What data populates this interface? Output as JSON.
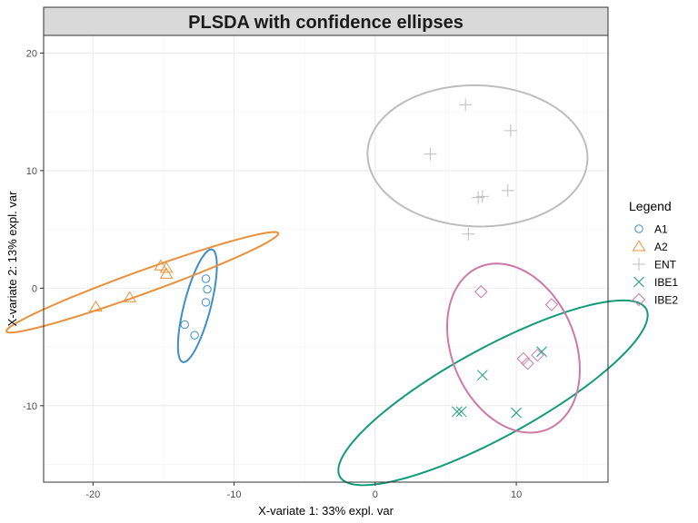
{
  "chart_data": {
    "type": "scatter",
    "title": "PLSDA with confidence ellipses",
    "xlabel": "X-variate 1: 33% expl. var",
    "ylabel": "X-variate 2: 13% expl. var",
    "xlim": [
      -23.5,
      16.5
    ],
    "ylim": [
      -16.5,
      21.5
    ],
    "xticks": [
      -20,
      -10,
      0,
      10
    ],
    "yticks": [
      -10,
      0,
      10,
      20
    ],
    "grid": true,
    "legend_title": "Legend",
    "legend_position": "right",
    "series": [
      {
        "name": "A1",
        "color": "#3d8fc4",
        "marker": "circle",
        "points": [
          [
            -12,
            0.8
          ],
          [
            -11.9,
            -0.1
          ],
          [
            -12,
            -1.2
          ],
          [
            -13.5,
            -3.1
          ],
          [
            -12.8,
            -4
          ]
        ],
        "ellipse": {
          "cx": -12.6,
          "cy": -1.5,
          "rx": 4.9,
          "ry": 0.95,
          "angle": 78
        }
      },
      {
        "name": "A2",
        "color": "#e8913a",
        "marker": "triangle",
        "points": [
          [
            -19.8,
            -1.6
          ],
          [
            -17.4,
            -0.8
          ],
          [
            -15.2,
            1.9
          ],
          [
            -14.8,
            1.7
          ],
          [
            -14.8,
            1.2
          ]
        ],
        "ellipse": {
          "cx": -16.5,
          "cy": 0.5,
          "rx": 10.5,
          "ry": 0.95,
          "angle": 23.5
        }
      },
      {
        "name": "ENT",
        "color": "#bdbdbd",
        "marker": "plus",
        "points": [
          [
            6.4,
            15.6
          ],
          [
            9.6,
            13.4
          ],
          [
            3.9,
            11.4
          ],
          [
            9.4,
            8.3
          ],
          [
            7.3,
            7.7
          ],
          [
            7.6,
            7.8
          ],
          [
            6.6,
            4.6
          ]
        ],
        "ellipse": {
          "cx": 7.25,
          "cy": 11.25,
          "rx": 6,
          "ry": 7.8,
          "angle": 87
        }
      },
      {
        "name": "IBE1",
        "color": "#119b78",
        "marker": "x",
        "points": [
          [
            5.8,
            -10.5
          ],
          [
            6.1,
            -10.5
          ],
          [
            7.6,
            -7.4
          ],
          [
            10,
            -10.6
          ],
          [
            11.8,
            -5.4
          ]
        ],
        "ellipse": {
          "cx": 8.35,
          "cy": -8.9,
          "rx": 13,
          "ry": 3.6,
          "angle": 34
        }
      },
      {
        "name": "IBE2",
        "color": "#cc79a7",
        "marker": "diamond",
        "points": [
          [
            7.5,
            -0.3
          ],
          [
            12.5,
            -1.4
          ],
          [
            10.5,
            -6
          ],
          [
            10.8,
            -6.4
          ],
          [
            11.5,
            -5.7
          ]
        ],
        "ellipse": {
          "cx": 9.8,
          "cy": -5.1,
          "rx": 7.35,
          "ry": 4.45,
          "angle": -75
        }
      }
    ]
  }
}
